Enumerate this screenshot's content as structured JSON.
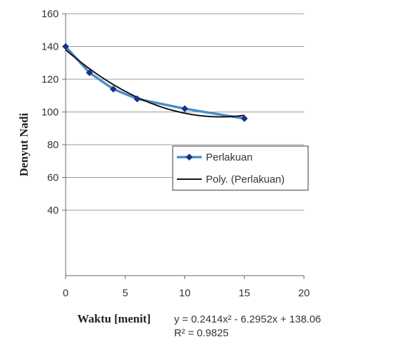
{
  "chart_data": {
    "type": "line",
    "x_label": "Waktu [menit]",
    "y_label": "Denyut Nadi",
    "x": [
      0,
      2,
      4,
      6,
      10,
      15
    ],
    "series": [
      {
        "name": "Perlakuan",
        "color": "#4a8fc9",
        "marker_color": "#1c2f8c",
        "values": [
          140,
          124,
          114,
          108,
          102,
          96
        ]
      }
    ],
    "trendline": {
      "name": "Poly. (Perlakuan)",
      "color": "#111111",
      "coefficients": [
        0.2414,
        -6.2952,
        138.06
      ],
      "equation": "y = 0.2414x² - 6.2952x + 138.06",
      "r_squared": 0.9825,
      "r_squared_label": "R² = 0.9825"
    },
    "xlim": [
      0,
      20
    ],
    "xticks": [
      0,
      5,
      10,
      15,
      20
    ],
    "ylim": [
      0,
      160
    ],
    "yticks": [
      40,
      60,
      80,
      100,
      120,
      140,
      160
    ],
    "grid": true
  }
}
